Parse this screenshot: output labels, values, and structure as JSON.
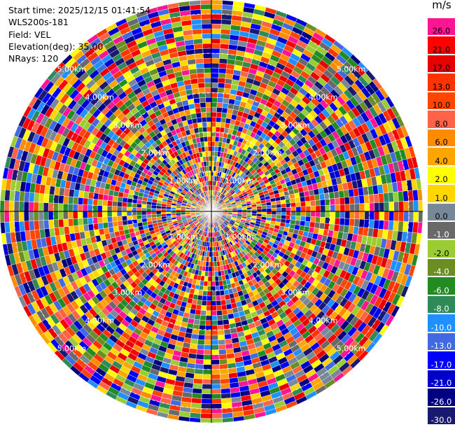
{
  "header": {
    "start_time": "Start time: 2025/12/15 01:41:54",
    "instrument": "WLS200s-181",
    "field": "Field: VEL",
    "elevation": "Elevation(deg): 35.00",
    "nrays": "NRays: 120"
  },
  "colorbar": {
    "unit": "m/s",
    "levels": [
      {
        "label": "26.0",
        "color": "#ff1493"
      },
      {
        "label": "21.0",
        "color": "#ff0000"
      },
      {
        "label": "17.0",
        "color": "#e60000"
      },
      {
        "label": "13.0",
        "color": "#ff3300"
      },
      {
        "label": "10.0",
        "color": "#ff4500"
      },
      {
        "label": "8.0",
        "color": "#ff6347"
      },
      {
        "label": "6.0",
        "color": "#ff8c00"
      },
      {
        "label": "4.0",
        "color": "#ffa500"
      },
      {
        "label": "2.0",
        "color": "#ffff00"
      },
      {
        "label": "1.0",
        "color": "#ffd700"
      },
      {
        "label": "0.0",
        "color": "#778899"
      },
      {
        "label": "-1.0",
        "color": "#696969"
      },
      {
        "label": "-2.0",
        "color": "#9acd32"
      },
      {
        "label": "-4.0",
        "color": "#6b8e23"
      },
      {
        "label": "-6.0",
        "color": "#228b22"
      },
      {
        "label": "-8.0",
        "color": "#2e8b57"
      },
      {
        "label": "-10.0",
        "color": "#1e90ff"
      },
      {
        "label": "-13.0",
        "color": "#4169e1"
      },
      {
        "label": "-17.0",
        "color": "#0000ff"
      },
      {
        "label": "-21.0",
        "color": "#0000cd"
      },
      {
        "label": "-26.0",
        "color": "#000080"
      },
      {
        "label": "-30.0",
        "color": "#191970"
      }
    ]
  },
  "chart_data": {
    "type": "heatmap",
    "projection": "polar-ppi",
    "field": "VEL",
    "unit": "m/s",
    "elevation_deg": 35.0,
    "n_rays": 120,
    "range_rings_km": [
      1.0,
      2.0,
      3.0,
      4.0,
      5.0
    ],
    "ring_labels": [
      "1.00km",
      "2.00km",
      "3.00km",
      "4.00km",
      "5.00km"
    ],
    "max_range_km": 5.35,
    "crosshair": true,
    "value_distribution": "highly variable radial velocities across all ranges and azimuths"
  }
}
